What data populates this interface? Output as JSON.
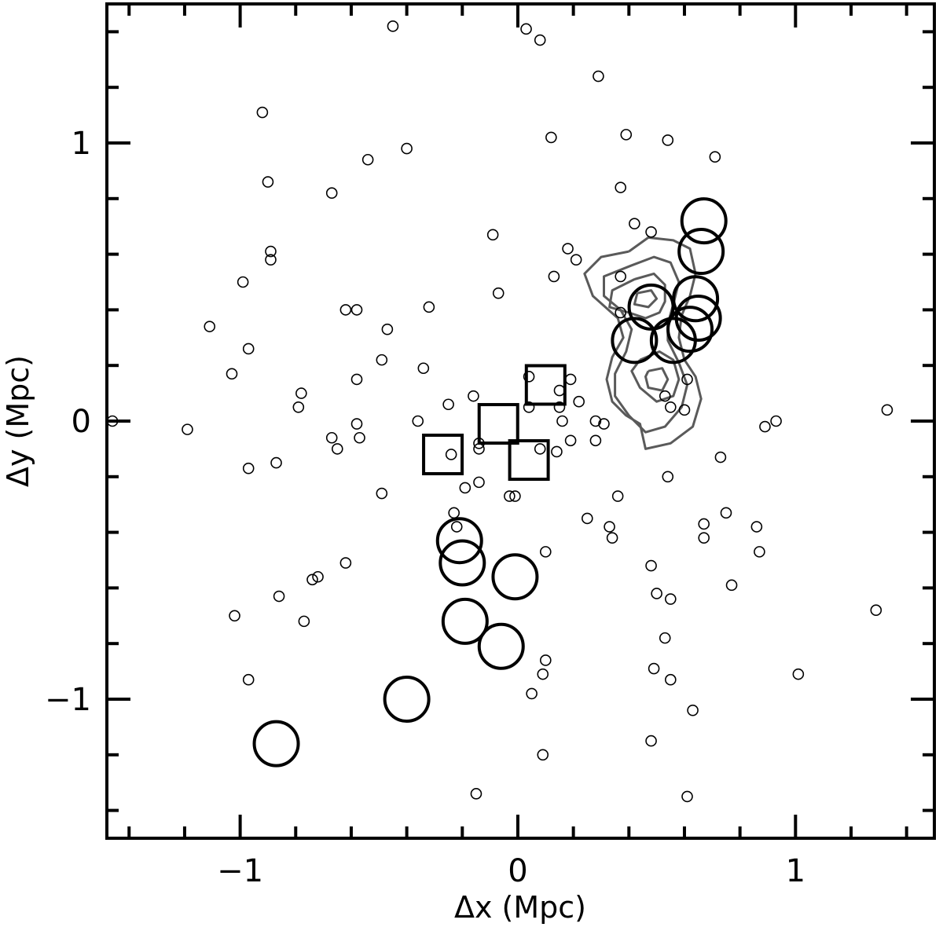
{
  "chart_data": {
    "type": "scatter",
    "xlabel": "Δx (Mpc)",
    "ylabel": "Δy (Mpc)",
    "xlim": [
      -1.48,
      1.5
    ],
    "ylim": [
      -1.5,
      1.5
    ],
    "x_ticks": [
      -1,
      0,
      1
    ],
    "x_tick_labels": [
      "−1",
      "0",
      "1"
    ],
    "y_ticks": [
      -1,
      0,
      1
    ],
    "y_tick_labels": [
      "−1",
      "0",
      "1"
    ],
    "minor_tick_step": 0.2,
    "grid": false,
    "legend": "none",
    "series": [
      {
        "marker": "small-open-circle",
        "points": [
          [
            -0.45,
            1.42
          ],
          [
            0.03,
            1.41
          ],
          [
            0.08,
            1.37
          ],
          [
            0.29,
            1.24
          ],
          [
            -0.92,
            1.11
          ],
          [
            0.39,
            1.03
          ],
          [
            0.54,
            1.01
          ],
          [
            0.12,
            1.02
          ],
          [
            -0.4,
            0.98
          ],
          [
            -0.54,
            0.94
          ],
          [
            0.71,
            0.95
          ],
          [
            -0.9,
            0.86
          ],
          [
            0.37,
            0.84
          ],
          [
            -0.67,
            0.82
          ],
          [
            0.42,
            0.71
          ],
          [
            0.48,
            0.68
          ],
          [
            -0.09,
            0.67
          ],
          [
            0.18,
            0.62
          ],
          [
            0.21,
            0.58
          ],
          [
            -0.89,
            0.61
          ],
          [
            -0.89,
            0.58
          ],
          [
            -0.99,
            0.5
          ],
          [
            0.13,
            0.52
          ],
          [
            -0.07,
            0.46
          ],
          [
            0.37,
            0.52
          ],
          [
            0.37,
            0.39
          ],
          [
            -0.62,
            0.4
          ],
          [
            -0.58,
            0.4
          ],
          [
            -0.32,
            0.41
          ],
          [
            -1.11,
            0.34
          ],
          [
            -0.47,
            0.33
          ],
          [
            -0.97,
            0.26
          ],
          [
            -0.49,
            0.22
          ],
          [
            -0.34,
            0.19
          ],
          [
            -1.03,
            0.17
          ],
          [
            0.04,
            0.16
          ],
          [
            0.19,
            0.15
          ],
          [
            -0.58,
            0.15
          ],
          [
            0.61,
            0.15
          ],
          [
            -0.78,
            0.1
          ],
          [
            -0.16,
            0.09
          ],
          [
            0.15,
            0.11
          ],
          [
            0.53,
            0.09
          ],
          [
            0.22,
            0.07
          ],
          [
            -0.25,
            0.06
          ],
          [
            -0.79,
            0.05
          ],
          [
            0.55,
            0.05
          ],
          [
            0.04,
            0.05
          ],
          [
            0.15,
            0.05
          ],
          [
            0.6,
            0.04
          ],
          [
            1.33,
            0.04
          ],
          [
            -1.46,
            0.0
          ],
          [
            -0.36,
            0.0
          ],
          [
            -0.58,
            -0.01
          ],
          [
            0.16,
            0.0
          ],
          [
            0.28,
            0.0
          ],
          [
            0.31,
            -0.01
          ],
          [
            0.93,
            0.0
          ],
          [
            -1.19,
            -0.03
          ],
          [
            0.89,
            -0.02
          ],
          [
            -0.14,
            -0.08
          ],
          [
            -0.67,
            -0.06
          ],
          [
            -0.57,
            -0.06
          ],
          [
            0.19,
            -0.07
          ],
          [
            0.28,
            -0.07
          ],
          [
            -0.65,
            -0.1
          ],
          [
            -0.14,
            -0.1
          ],
          [
            0.08,
            -0.1
          ],
          [
            0.14,
            -0.11
          ],
          [
            -0.24,
            -0.12
          ],
          [
            0.73,
            -0.13
          ],
          [
            -0.87,
            -0.15
          ],
          [
            -0.97,
            -0.17
          ],
          [
            0.54,
            -0.2
          ],
          [
            -0.14,
            -0.22
          ],
          [
            -0.19,
            -0.24
          ],
          [
            -0.49,
            -0.26
          ],
          [
            -0.03,
            -0.27
          ],
          [
            -0.01,
            -0.27
          ],
          [
            0.36,
            -0.27
          ],
          [
            0.75,
            -0.33
          ],
          [
            -0.23,
            -0.33
          ],
          [
            0.25,
            -0.35
          ],
          [
            -0.22,
            -0.38
          ],
          [
            0.33,
            -0.38
          ],
          [
            0.86,
            -0.38
          ],
          [
            0.67,
            -0.37
          ],
          [
            0.34,
            -0.42
          ],
          [
            0.67,
            -0.42
          ],
          [
            0.87,
            -0.47
          ],
          [
            0.1,
            -0.47
          ],
          [
            -0.62,
            -0.51
          ],
          [
            0.48,
            -0.52
          ],
          [
            -0.72,
            -0.56
          ],
          [
            -0.74,
            -0.57
          ],
          [
            0.77,
            -0.59
          ],
          [
            0.5,
            -0.62
          ],
          [
            0.55,
            -0.64
          ],
          [
            -0.86,
            -0.63
          ],
          [
            1.29,
            -0.68
          ],
          [
            -1.02,
            -0.7
          ],
          [
            -0.77,
            -0.72
          ],
          [
            0.53,
            -0.78
          ],
          [
            0.1,
            -0.86
          ],
          [
            0.49,
            -0.89
          ],
          [
            0.55,
            -0.93
          ],
          [
            -0.97,
            -0.93
          ],
          [
            0.09,
            -0.91
          ],
          [
            1.01,
            -0.91
          ],
          [
            0.05,
            -0.98
          ],
          [
            0.63,
            -1.04
          ],
          [
            0.48,
            -1.15
          ],
          [
            0.09,
            -1.2
          ],
          [
            -0.15,
            -1.34
          ],
          [
            0.61,
            -1.35
          ]
        ]
      },
      {
        "marker": "large-open-circle",
        "points": [
          [
            0.67,
            0.72
          ],
          [
            0.66,
            0.61
          ],
          [
            0.64,
            0.44
          ],
          [
            0.65,
            0.37
          ],
          [
            0.48,
            0.41
          ],
          [
            0.62,
            0.33
          ],
          [
            0.42,
            0.29
          ],
          [
            0.56,
            0.29
          ],
          [
            -0.21,
            -0.43
          ],
          [
            -0.2,
            -0.51
          ],
          [
            -0.01,
            -0.56
          ],
          [
            -0.19,
            -0.72
          ],
          [
            -0.06,
            -0.81
          ],
          [
            -0.4,
            -1.0
          ],
          [
            -0.87,
            -1.16
          ]
        ]
      },
      {
        "marker": "open-square",
        "points": [
          [
            0.1,
            0.13
          ],
          [
            -0.07,
            -0.01
          ],
          [
            0.04,
            -0.14
          ],
          [
            -0.27,
            -0.12
          ]
        ]
      }
    ],
    "contours": [
      [
        [
          0.4,
          0.61
        ],
        [
          0.47,
          0.66
        ],
        [
          0.56,
          0.65
        ],
        [
          0.62,
          0.62
        ],
        [
          0.64,
          0.53
        ],
        [
          0.62,
          0.45
        ],
        [
          0.59,
          0.38
        ],
        [
          0.58,
          0.3
        ],
        [
          0.6,
          0.22
        ],
        [
          0.64,
          0.16
        ],
        [
          0.66,
          0.08
        ],
        [
          0.63,
          -0.02
        ],
        [
          0.55,
          -0.08
        ],
        [
          0.46,
          -0.1
        ],
        [
          0.44,
          -0.01
        ],
        [
          0.39,
          0.02
        ],
        [
          0.34,
          0.07
        ],
        [
          0.32,
          0.15
        ],
        [
          0.34,
          0.23
        ],
        [
          0.38,
          0.3
        ],
        [
          0.36,
          0.37
        ],
        [
          0.27,
          0.45
        ],
        [
          0.24,
          0.53
        ],
        [
          0.3,
          0.59
        ],
        [
          0.4,
          0.61
        ]
      ],
      [
        [
          0.41,
          0.56
        ],
        [
          0.49,
          0.59
        ],
        [
          0.55,
          0.57
        ],
        [
          0.58,
          0.5
        ],
        [
          0.56,
          0.42
        ],
        [
          0.54,
          0.35
        ],
        [
          0.54,
          0.29
        ],
        [
          0.58,
          0.21
        ],
        [
          0.61,
          0.13
        ],
        [
          0.59,
          0.05
        ],
        [
          0.53,
          -0.02
        ],
        [
          0.46,
          -0.04
        ],
        [
          0.4,
          0.02
        ],
        [
          0.35,
          0.09
        ],
        [
          0.35,
          0.17
        ],
        [
          0.39,
          0.25
        ],
        [
          0.41,
          0.33
        ],
        [
          0.37,
          0.4
        ],
        [
          0.31,
          0.45
        ],
        [
          0.31,
          0.52
        ],
        [
          0.41,
          0.56
        ]
      ],
      [
        [
          0.42,
          0.51
        ],
        [
          0.49,
          0.53
        ],
        [
          0.53,
          0.49
        ],
        [
          0.53,
          0.43
        ],
        [
          0.51,
          0.39
        ],
        [
          0.46,
          0.37
        ],
        [
          0.4,
          0.39
        ],
        [
          0.33,
          0.41
        ],
        [
          0.34,
          0.47
        ],
        [
          0.42,
          0.51
        ]
      ],
      [
        [
          0.43,
          0.46
        ],
        [
          0.48,
          0.47
        ],
        [
          0.5,
          0.44
        ],
        [
          0.47,
          0.41
        ],
        [
          0.42,
          0.42
        ],
        [
          0.43,
          0.46
        ]
      ],
      [
        [
          0.44,
          0.22
        ],
        [
          0.51,
          0.25
        ],
        [
          0.56,
          0.22
        ],
        [
          0.58,
          0.15
        ],
        [
          0.56,
          0.09
        ],
        [
          0.5,
          0.07
        ],
        [
          0.44,
          0.12
        ],
        [
          0.41,
          0.18
        ],
        [
          0.44,
          0.22
        ]
      ],
      [
        [
          0.47,
          0.18
        ],
        [
          0.52,
          0.19
        ],
        [
          0.54,
          0.15
        ],
        [
          0.52,
          0.11
        ],
        [
          0.47,
          0.12
        ],
        [
          0.46,
          0.16
        ],
        [
          0.47,
          0.18
        ]
      ]
    ]
  }
}
